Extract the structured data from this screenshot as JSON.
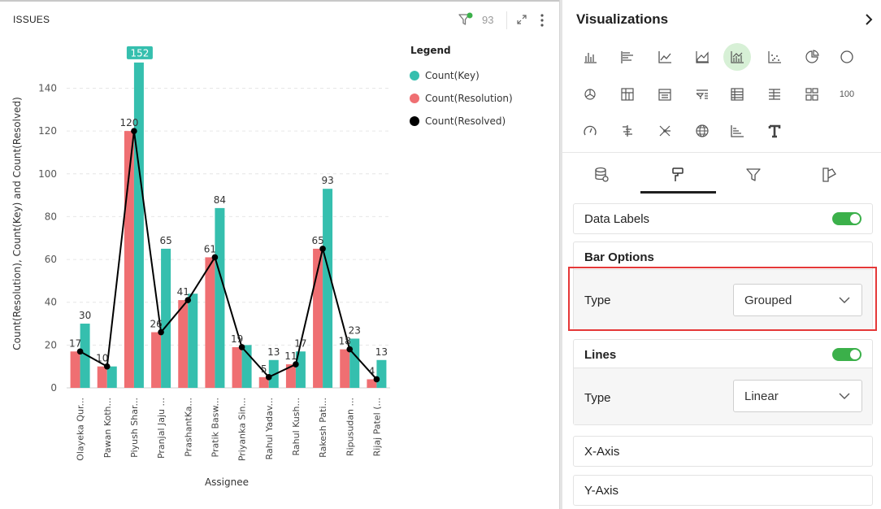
{
  "panel": {
    "title": "ISSUES",
    "filter_count": "93"
  },
  "chart_data": {
    "type": "bar",
    "xlabel": "Assignee",
    "ylabel": "Count(Resolution), Count(Key) and Count(Resolved)",
    "ylim": [
      0,
      155
    ],
    "yticks": [
      0,
      20,
      40,
      60,
      80,
      100,
      120,
      140
    ],
    "grid": true,
    "legend_title": "Legend",
    "legend_position": "top-right",
    "categories": [
      "Olayeka Qur...",
      "Pawan Koth...",
      "Piyush Shar...",
      "Pranjal Jaju ...",
      "PrashantKa...",
      "Pratik Basw...",
      "Priyanka Sin...",
      "Rahul Yadav...",
      "Rahul Kush...",
      "Rakesh Pati...",
      "Ripusudan ...",
      "Rijaj Patel (..."
    ],
    "series": [
      {
        "name": "Count(Resolution)",
        "kind": "bar",
        "color": "#ef6f72",
        "values": [
          17,
          10,
          120,
          26,
          41,
          61,
          19,
          5,
          11,
          65,
          18,
          4
        ]
      },
      {
        "name": "Count(Key)",
        "kind": "bar",
        "color": "#35bfae",
        "values": [
          30,
          10,
          152,
          65,
          44,
          84,
          20,
          13,
          17,
          93,
          23,
          13
        ]
      },
      {
        "name": "Count(Resolved)",
        "kind": "line",
        "color": "#000000",
        "values": [
          17,
          10,
          120,
          26,
          41,
          61,
          19,
          5,
          11,
          65,
          18,
          4
        ]
      }
    ],
    "legend_order": [
      "Count(Key)",
      "Count(Resolution)",
      "Count(Resolved)"
    ],
    "label_values_resolution": [
      "17",
      "10",
      "120",
      "26",
      "41",
      "61",
      "19",
      "5",
      "11",
      "65",
      "18",
      "4"
    ],
    "label_values_key": [
      "30",
      "",
      "152",
      "65",
      "",
      "84",
      "",
      "13",
      "17",
      "93",
      "23",
      "13"
    ],
    "highlight_label_color": "#35bfae"
  },
  "viz": {
    "title": "Visualizations",
    "icons": [
      "bar-chart-icon",
      "horizontal-bar-icon",
      "line-chart-icon",
      "area-chart-icon",
      "combo-chart-icon",
      "scatter-icon",
      "pie-icon",
      "donut-icon",
      "funnel-pie-icon",
      "pivot-icon",
      "table-alt-icon",
      "filter-list-icon",
      "table-icon",
      "list-icon",
      "tiles-icon",
      "number-icon",
      "gauge-icon",
      "waterfall-icon",
      "network-icon",
      "globe-icon",
      "step-chart-icon",
      "text-icon"
    ],
    "number_icon_text": "100",
    "tabs": [
      "data-tab",
      "format-tab",
      "filter-tab",
      "style-tab"
    ],
    "sections": {
      "data_labels": {
        "label": "Data Labels",
        "enabled": true
      },
      "bar_options": {
        "label": "Bar Options",
        "type_label": "Type",
        "type_value": "Grouped"
      },
      "lines": {
        "label": "Lines",
        "enabled": true,
        "type_label": "Type",
        "type_value": "Linear"
      },
      "x_axis": {
        "label": "X-Axis"
      },
      "y_axis": {
        "label": "Y-Axis"
      }
    },
    "accent_color": "#3bb04a",
    "highlight_color": "#e53838"
  }
}
